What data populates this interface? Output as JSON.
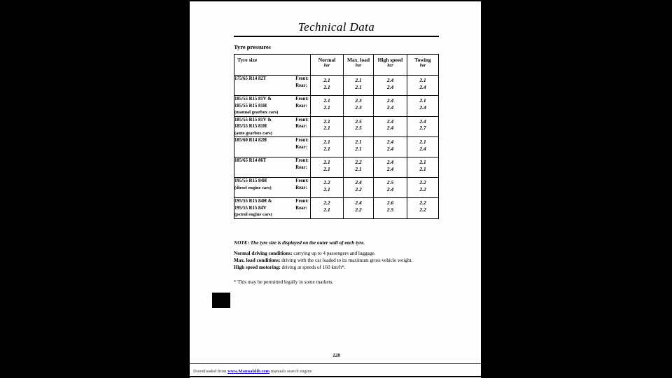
{
  "page": {
    "title": "Technical Data",
    "section_heading": "Tyre pressures",
    "page_number": "128"
  },
  "table": {
    "col_headers": [
      {
        "label": "Tyre size",
        "unit": ""
      },
      {
        "label": "Normal",
        "unit": "bar"
      },
      {
        "label": "Max. load",
        "unit": "bar"
      },
      {
        "label": "High speed",
        "unit": "bar"
      },
      {
        "label": "Towing",
        "unit": "bar"
      }
    ],
    "front_label": "Front:",
    "rear_label": "Rear:",
    "rows": [
      {
        "size_lines": [
          "175/65 R14 82T"
        ],
        "note": "",
        "front": [
          "2.1",
          "2.1",
          "2.4",
          "2.1"
        ],
        "rear": [
          "2.1",
          "2.1",
          "2.4",
          "2.4"
        ]
      },
      {
        "size_lines": [
          "185/55 R15 81V &",
          "185/55 R15 81H"
        ],
        "note": "(manual gearbox cars)",
        "front": [
          "2.1",
          "2.3",
          "2.4",
          "2.1"
        ],
        "rear": [
          "2.1",
          "2.3",
          "2.4",
          "2.4"
        ]
      },
      {
        "size_lines": [
          "185/55 R15 81V &",
          "185/55 R15 81H"
        ],
        "note": "(auto gearbox cars)",
        "front": [
          "2.1",
          "2.5",
          "2.4",
          "2.4"
        ],
        "rear": [
          "2.1",
          "2.5",
          "2.4",
          "2.7"
        ]
      },
      {
        "size_lines": [
          "185/60 R14 82H"
        ],
        "note": "",
        "front": [
          "2.1",
          "2.1",
          "2.4",
          "2.1"
        ],
        "rear": [
          "2.1",
          "2.1",
          "2.4",
          "2.4"
        ]
      },
      {
        "size_lines": [
          "185/65 R14 86T"
        ],
        "note": "",
        "front": [
          "2.1",
          "2.2",
          "2.4",
          "2.1"
        ],
        "rear": [
          "2.1",
          "2.1",
          "2.4",
          "2.1"
        ]
      },
      {
        "size_lines": [
          "195/55 R15 84H"
        ],
        "note": "(diesel engine cars)",
        "front": [
          "2.2",
          "2.4",
          "2.5",
          "2.2"
        ],
        "rear": [
          "2.1",
          "2.2",
          "2.4",
          "2.2"
        ]
      },
      {
        "size_lines": [
          "195/55 R15 84H &",
          "195/55 R15 84V"
        ],
        "note": "(petrol engine cars)",
        "front": [
          "2.2",
          "2.4",
          "2.6",
          "2.2"
        ],
        "rear": [
          "2.1",
          "2.2",
          "2.5",
          "2.2"
        ]
      }
    ]
  },
  "notes": {
    "note_label": "NOTE:",
    "note_text": " The tyre size is displayed on the outer wall of each tyre.",
    "conditions": [
      {
        "label": "Normal driving conditions:",
        "text": " carrying up to 4 passengers and luggage."
      },
      {
        "label": "Max. load conditions:",
        "text": " driving with the car loaded to its maximum gross vehicle weight."
      },
      {
        "label": "High speed motoring:",
        "text": " driving at speeds of 160 km/h*."
      }
    ],
    "asterisk_note": "* This may be permitted legally in some markets."
  },
  "footer": {
    "prefix": "Downloaded from ",
    "link_text": "www.Manualslib.com",
    "suffix": " manuals search engine"
  },
  "colors": {
    "background": "#000000",
    "page": "#fdfdfd",
    "text": "#000000",
    "link": "#1a0dcc"
  }
}
